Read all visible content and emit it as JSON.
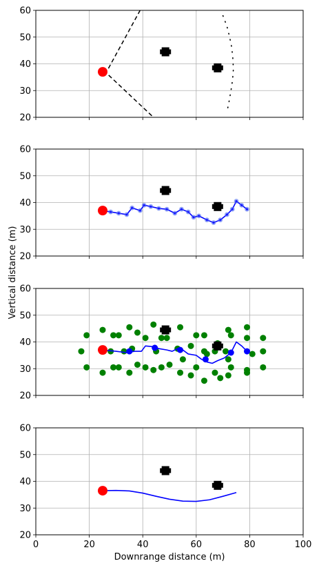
{
  "figure": {
    "xlabel": "Downrange distance (m)",
    "ylabel": "Vertical distance (m)"
  },
  "chart_data": [
    {
      "type": "scatter",
      "panel": 1,
      "xlim": [
        0,
        100
      ],
      "ylim": [
        20,
        60
      ],
      "xticks": [
        0,
        20,
        40,
        60,
        80,
        100
      ],
      "yticks": [
        20,
        30,
        40,
        50,
        60
      ],
      "show_xticklabels": false,
      "grid": true,
      "start": {
        "x": 25,
        "y": 37,
        "color": "#ff0000"
      },
      "obstacles": [
        {
          "x": 48.5,
          "y": 44.5
        },
        {
          "x": 68,
          "y": 38.5
        }
      ],
      "cone_lines": [
        {
          "points": [
            [
              25,
              37
            ],
            [
              27,
              38
            ],
            [
              39,
              60
            ]
          ],
          "style": "dashed"
        },
        {
          "points": [
            [
              25,
              37
            ],
            [
              27,
              36
            ],
            [
              44,
              20
            ]
          ],
          "style": "dashed"
        }
      ],
      "dotted_curve": [
        [
          70,
          58
        ],
        [
          71.5,
          54
        ],
        [
          72.5,
          50
        ],
        [
          73.3,
          46
        ],
        [
          73.7,
          42
        ],
        [
          73.9,
          38
        ],
        [
          73.6,
          34
        ],
        [
          73,
          30
        ],
        [
          72.3,
          26
        ],
        [
          71.5,
          22
        ]
      ]
    },
    {
      "type": "line",
      "panel": 2,
      "xlim": [
        0,
        100
      ],
      "ylim": [
        20,
        60
      ],
      "xticks": [
        0,
        20,
        40,
        60,
        80,
        100
      ],
      "yticks": [
        20,
        30,
        40,
        50,
        60
      ],
      "show_xticklabels": false,
      "grid": true,
      "start": {
        "x": 25,
        "y": 37,
        "color": "#ff0000"
      },
      "obstacles": [
        {
          "x": 48.5,
          "y": 44.5
        },
        {
          "x": 68,
          "y": 38.5
        }
      ],
      "path": {
        "color": "#0000ff",
        "points": [
          [
            25,
            37
          ],
          [
            28,
            36.5
          ],
          [
            31,
            36
          ],
          [
            34,
            35.5
          ],
          [
            36,
            38
          ],
          [
            39,
            37
          ],
          [
            40.5,
            39
          ],
          [
            43,
            38.5
          ],
          [
            46,
            37.8
          ],
          [
            49,
            37.5
          ],
          [
            52,
            36
          ],
          [
            54.5,
            37.5
          ],
          [
            57,
            36.5
          ],
          [
            59,
            34.5
          ],
          [
            61,
            35
          ],
          [
            64,
            33.5
          ],
          [
            66.5,
            32.5
          ],
          [
            69,
            33.5
          ],
          [
            71.5,
            35.5
          ],
          [
            73.5,
            37.5
          ],
          [
            75,
            40.5
          ],
          [
            77,
            39
          ],
          [
            79,
            37.5
          ]
        ]
      }
    },
    {
      "type": "scatter",
      "panel": 3,
      "xlim": [
        0,
        100
      ],
      "ylim": [
        20,
        60
      ],
      "xticks": [
        0,
        20,
        40,
        60,
        80,
        100
      ],
      "yticks": [
        20,
        30,
        40,
        50,
        60
      ],
      "show_xticklabels": false,
      "grid": true,
      "start": {
        "x": 25,
        "y": 37,
        "color": "#ff0000"
      },
      "obstacles": [
        {
          "x": 48.5,
          "y": 44.5
        },
        {
          "x": 68,
          "y": 38.5
        }
      ],
      "samples": {
        "color": "#008000",
        "points": [
          [
            17,
            36.5
          ],
          [
            19,
            42.5
          ],
          [
            19,
            30.5
          ],
          [
            25,
            44.5
          ],
          [
            25,
            28.5
          ],
          [
            28,
            36.5
          ],
          [
            29,
            42.5
          ],
          [
            29,
            30.5
          ],
          [
            31,
            42.5
          ],
          [
            31,
            30.5
          ],
          [
            33,
            36.5
          ],
          [
            35,
            45.5
          ],
          [
            35,
            28.5
          ],
          [
            36,
            37.5
          ],
          [
            38,
            43.5
          ],
          [
            38,
            31.5
          ],
          [
            41,
            41.5
          ],
          [
            41,
            30.5
          ],
          [
            44,
            46.5
          ],
          [
            44,
            29.5
          ],
          [
            45,
            36.5
          ],
          [
            47,
            41.5
          ],
          [
            47,
            30.5
          ],
          [
            49,
            41.5
          ],
          [
            50,
            31.5
          ],
          [
            53,
            37.5
          ],
          [
            54,
            45.5
          ],
          [
            54,
            28.5
          ],
          [
            55,
            33.5
          ],
          [
            58,
            38.5
          ],
          [
            58,
            27.5
          ],
          [
            60,
            42.5
          ],
          [
            60,
            30.5
          ],
          [
            63,
            42.5
          ],
          [
            63,
            36.5
          ],
          [
            63,
            25.5
          ],
          [
            64,
            35.5
          ],
          [
            67,
            36.5
          ],
          [
            67,
            28.5
          ],
          [
            68,
            39.5
          ],
          [
            69,
            26.5
          ],
          [
            71,
            36.5
          ],
          [
            72,
            33.5
          ],
          [
            72,
            44.5
          ],
          [
            72,
            27.5
          ],
          [
            73,
            42.5
          ],
          [
            73,
            30.5
          ],
          [
            79,
            45.5
          ],
          [
            79,
            41.5
          ],
          [
            79,
            29.5
          ],
          [
            79,
            28.5
          ],
          [
            81,
            35.5
          ],
          [
            85,
            41.5
          ],
          [
            85,
            36.5
          ],
          [
            85,
            30.5
          ]
        ]
      },
      "waypoints": {
        "color": "#0000ff",
        "points": [
          [
            35,
            36.5
          ],
          [
            44.5,
            37.8
          ],
          [
            54,
            37
          ],
          [
            63.5,
            33.5
          ],
          [
            73,
            36
          ],
          [
            79,
            36.5
          ]
        ]
      },
      "path": {
        "color": "#0000ff",
        "points": [
          [
            25,
            37
          ],
          [
            30,
            36.5
          ],
          [
            34,
            36
          ],
          [
            37,
            36.5
          ],
          [
            39.5,
            36.5
          ],
          [
            41,
            38.5
          ],
          [
            44,
            38.2
          ],
          [
            46,
            37.5
          ],
          [
            49,
            37
          ],
          [
            51,
            36.5
          ],
          [
            53,
            37.5
          ],
          [
            55,
            37
          ],
          [
            57,
            35.5
          ],
          [
            60,
            35
          ],
          [
            62,
            33.5
          ],
          [
            64,
            32.5
          ],
          [
            66,
            32
          ],
          [
            68,
            33
          ],
          [
            70.5,
            34
          ],
          [
            73,
            36
          ],
          [
            75,
            40
          ],
          [
            77,
            38.5
          ],
          [
            79,
            36.5
          ]
        ]
      }
    },
    {
      "type": "line",
      "panel": 4,
      "xlim": [
        0,
        100
      ],
      "ylim": [
        20,
        60
      ],
      "xticks": [
        0,
        20,
        40,
        60,
        80,
        100
      ],
      "yticks": [
        20,
        30,
        40,
        50,
        60
      ],
      "show_xticklabels": true,
      "grid": true,
      "start": {
        "x": 25,
        "y": 36.5,
        "color": "#ff0000"
      },
      "obstacles": [
        {
          "x": 48.5,
          "y": 44
        },
        {
          "x": 68,
          "y": 38.5
        }
      ],
      "path": {
        "color": "#0000ff",
        "points": [
          [
            25,
            36.5
          ],
          [
            30,
            36.6
          ],
          [
            35,
            36.4
          ],
          [
            40,
            35.6
          ],
          [
            45,
            34.4
          ],
          [
            50,
            33.3
          ],
          [
            55,
            32.6
          ],
          [
            60,
            32.5
          ],
          [
            65,
            33.1
          ],
          [
            70,
            34.4
          ],
          [
            75,
            35.8
          ]
        ]
      }
    }
  ]
}
